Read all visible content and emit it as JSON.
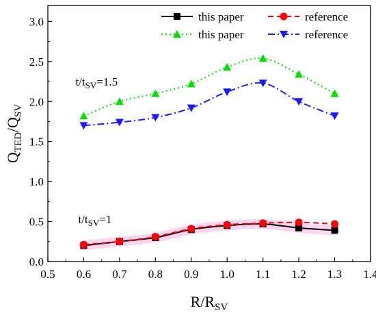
{
  "chart_data": {
    "type": "line",
    "xlabel_main": "R/R",
    "xlabel_sub": "SV",
    "ylabel_main": "Q",
    "ylabel_sub1": "TED",
    "ylabel_mid": "/Q",
    "ylabel_sub2": "SV",
    "xlim": [
      0.5,
      1.4
    ],
    "ylim": [
      0.0,
      3.2
    ],
    "x_ticks": [
      "0.5",
      "0.6",
      "0.7",
      "0.8",
      "0.9",
      "1.0",
      "1.1",
      "1.2",
      "1.3",
      "1.4"
    ],
    "y_ticks": [
      "0.0",
      "0.5",
      "1.0",
      "1.5",
      "2.0",
      "2.5",
      "3.0"
    ],
    "grid": false,
    "legend_position": "top-right",
    "annotations": [
      {
        "main": "t/t",
        "sub": "SV",
        "tail": "=1.5",
        "at": [
          0.6,
          2.2
        ]
      },
      {
        "main": "t/t",
        "sub": "SV",
        "tail": "=1",
        "at": [
          0.6,
          0.48
        ]
      }
    ],
    "x": [
      0.6,
      0.7,
      0.8,
      0.9,
      1.0,
      1.1,
      1.2,
      1.3
    ],
    "series": [
      {
        "name": "this paper",
        "color": "#000000",
        "marker": "square",
        "dash": "solid",
        "values": [
          0.2,
          0.25,
          0.3,
          0.4,
          0.45,
          0.47,
          0.42,
          0.39
        ]
      },
      {
        "name": "reference",
        "color": "#ff0000",
        "marker": "circle",
        "dash": "dashed",
        "values": [
          0.21,
          0.25,
          0.31,
          0.41,
          0.46,
          0.48,
          0.49,
          0.47
        ]
      },
      {
        "name": "this paper",
        "color": "#00dd00",
        "marker": "triangle-up",
        "dash": "dotted",
        "values": [
          1.82,
          2.0,
          2.1,
          2.22,
          2.43,
          2.54,
          2.34,
          2.1
        ]
      },
      {
        "name": "reference",
        "color": "#1a1aff",
        "marker": "triangle-down",
        "dash": "dashdot",
        "values": [
          1.7,
          1.74,
          1.8,
          1.92,
          2.12,
          2.23,
          2.0,
          1.82
        ]
      }
    ],
    "highlight": {
      "color": "#ff66cc",
      "series_index": 0
    }
  }
}
